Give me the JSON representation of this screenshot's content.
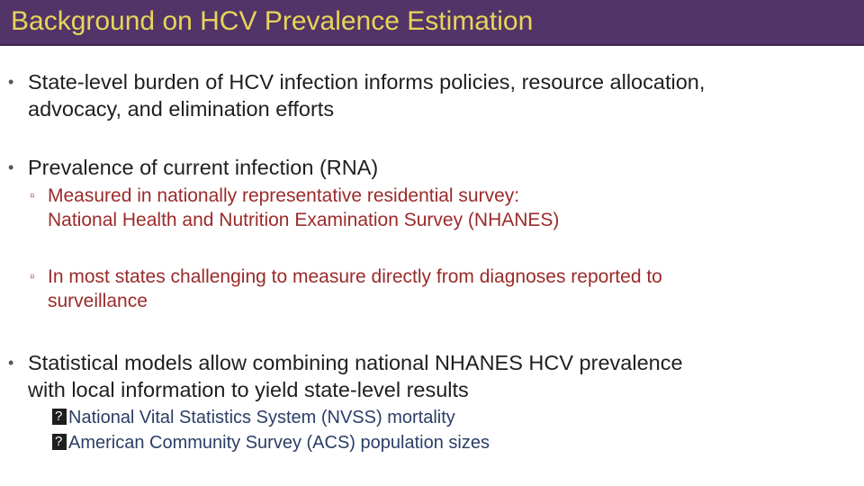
{
  "title": "Background on HCV Prevalence Estimation",
  "bullets": [
    {
      "lines": [
        "State-level burden of HCV infection informs policies, resource allocation,",
        "advocacy, and elimination efforts"
      ]
    },
    {
      "lines": [
        "Prevalence of current infection (RNA)"
      ],
      "subs": [
        {
          "lines": [
            "Measured in nationally representative residential survey:",
            "National Health and Nutrition Examination Survey (NHANES)"
          ]
        },
        {
          "lines": [
            "In most states challenging to measure directly from diagnoses reported to",
            "surveillance"
          ]
        }
      ]
    },
    {
      "lines": [
        "Statistical models allow combining national NHANES HCV prevalence",
        "with local information to yield state-level results"
      ],
      "subs": [
        {
          "text": "National Vital Statistics System (NVSS) mortality"
        },
        {
          "text": "American Community Survey (ACS) population sizes"
        }
      ]
    }
  ],
  "colors": {
    "title_bar": "#533468",
    "title_text": "#e8d55a",
    "body_text": "#1f1f1f",
    "sub_text": "#9b2a2a",
    "sub3_text": "#2b3e66"
  }
}
